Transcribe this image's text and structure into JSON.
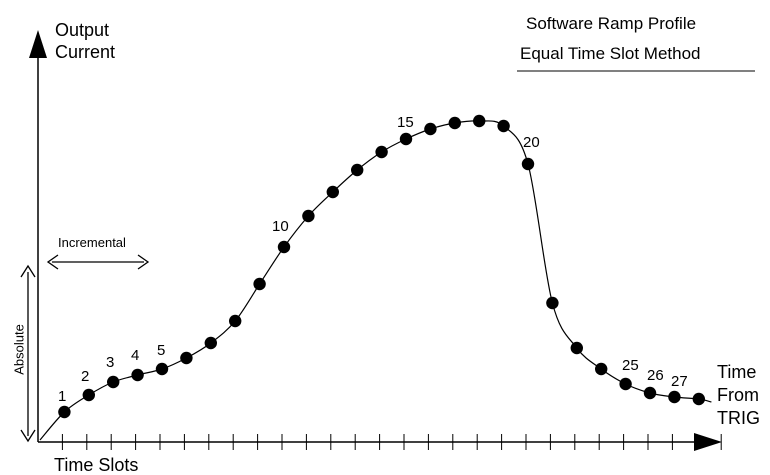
{
  "title_line1": "Software Ramp Profile",
  "title_line2": "Equal Time Slot Method",
  "y_axis_label_line1": "Output",
  "y_axis_label_line2": "Current",
  "x_axis_label": "Time Slots",
  "x_end_label_line1": "Time",
  "x_end_label_line2": "From",
  "x_end_label_line3": "TRIG",
  "incremental_label": "Incremental",
  "absolute_label": "Absolute",
  "point_labels": [
    "1",
    "2",
    "3",
    "4",
    "5",
    "10",
    "15",
    "20",
    "25",
    "26",
    "27"
  ],
  "point_count": 27,
  "colors": {
    "ink": "#000000",
    "background": "#ffffff"
  }
}
